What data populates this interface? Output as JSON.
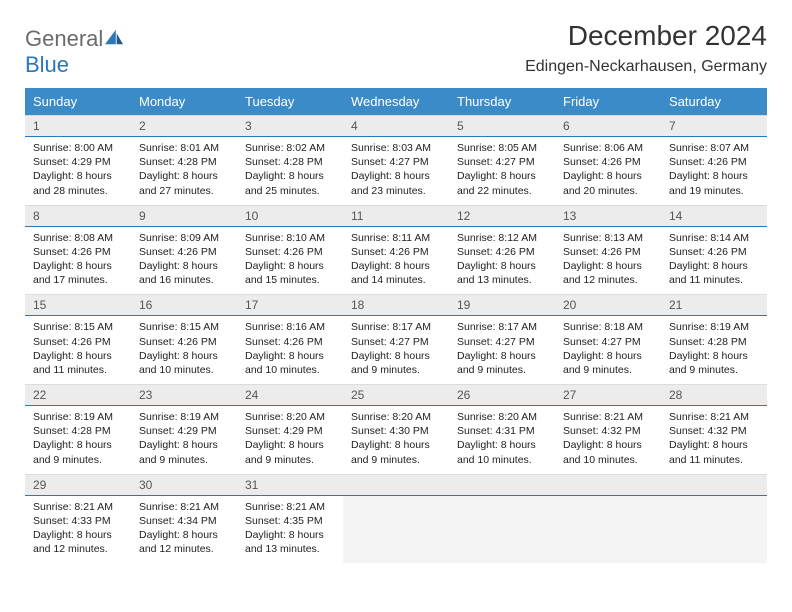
{
  "logo": {
    "part1": "General",
    "part2": "Blue"
  },
  "title": "December 2024",
  "location": "Edingen-Neckarhausen, Germany",
  "colors": {
    "header_bg": "#3b8bc8",
    "header_text": "#ffffff",
    "numrow_bg": "#ececec",
    "accent_border": "#2a77bb",
    "logo_gray": "#6b6b6b",
    "logo_blue": "#2a77bb",
    "body_text": "#222222"
  },
  "day_headers": [
    "Sunday",
    "Monday",
    "Tuesday",
    "Wednesday",
    "Thursday",
    "Friday",
    "Saturday"
  ],
  "weeks": [
    {
      "nums": [
        "1",
        "2",
        "3",
        "4",
        "5",
        "6",
        "7"
      ],
      "cells": [
        {
          "sunrise": "8:00 AM",
          "sunset": "4:29 PM",
          "dlh": "8",
          "dlm": "28"
        },
        {
          "sunrise": "8:01 AM",
          "sunset": "4:28 PM",
          "dlh": "8",
          "dlm": "27"
        },
        {
          "sunrise": "8:02 AM",
          "sunset": "4:28 PM",
          "dlh": "8",
          "dlm": "25"
        },
        {
          "sunrise": "8:03 AM",
          "sunset": "4:27 PM",
          "dlh": "8",
          "dlm": "23"
        },
        {
          "sunrise": "8:05 AM",
          "sunset": "4:27 PM",
          "dlh": "8",
          "dlm": "22"
        },
        {
          "sunrise": "8:06 AM",
          "sunset": "4:26 PM",
          "dlh": "8",
          "dlm": "20"
        },
        {
          "sunrise": "8:07 AM",
          "sunset": "4:26 PM",
          "dlh": "8",
          "dlm": "19"
        }
      ]
    },
    {
      "nums": [
        "8",
        "9",
        "10",
        "11",
        "12",
        "13",
        "14"
      ],
      "cells": [
        {
          "sunrise": "8:08 AM",
          "sunset": "4:26 PM",
          "dlh": "8",
          "dlm": "17"
        },
        {
          "sunrise": "8:09 AM",
          "sunset": "4:26 PM",
          "dlh": "8",
          "dlm": "16"
        },
        {
          "sunrise": "8:10 AM",
          "sunset": "4:26 PM",
          "dlh": "8",
          "dlm": "15"
        },
        {
          "sunrise": "8:11 AM",
          "sunset": "4:26 PM",
          "dlh": "8",
          "dlm": "14"
        },
        {
          "sunrise": "8:12 AM",
          "sunset": "4:26 PM",
          "dlh": "8",
          "dlm": "13"
        },
        {
          "sunrise": "8:13 AM",
          "sunset": "4:26 PM",
          "dlh": "8",
          "dlm": "12"
        },
        {
          "sunrise": "8:14 AM",
          "sunset": "4:26 PM",
          "dlh": "8",
          "dlm": "11"
        }
      ]
    },
    {
      "nums": [
        "15",
        "16",
        "17",
        "18",
        "19",
        "20",
        "21"
      ],
      "cells": [
        {
          "sunrise": "8:15 AM",
          "sunset": "4:26 PM",
          "dlh": "8",
          "dlm": "11"
        },
        {
          "sunrise": "8:15 AM",
          "sunset": "4:26 PM",
          "dlh": "8",
          "dlm": "10"
        },
        {
          "sunrise": "8:16 AM",
          "sunset": "4:26 PM",
          "dlh": "8",
          "dlm": "10"
        },
        {
          "sunrise": "8:17 AM",
          "sunset": "4:27 PM",
          "dlh": "8",
          "dlm": "9"
        },
        {
          "sunrise": "8:17 AM",
          "sunset": "4:27 PM",
          "dlh": "8",
          "dlm": "9"
        },
        {
          "sunrise": "8:18 AM",
          "sunset": "4:27 PM",
          "dlh": "8",
          "dlm": "9"
        },
        {
          "sunrise": "8:19 AM",
          "sunset": "4:28 PM",
          "dlh": "8",
          "dlm": "9"
        }
      ]
    },
    {
      "nums": [
        "22",
        "23",
        "24",
        "25",
        "26",
        "27",
        "28"
      ],
      "cells": [
        {
          "sunrise": "8:19 AM",
          "sunset": "4:28 PM",
          "dlh": "8",
          "dlm": "9"
        },
        {
          "sunrise": "8:19 AM",
          "sunset": "4:29 PM",
          "dlh": "8",
          "dlm": "9"
        },
        {
          "sunrise": "8:20 AM",
          "sunset": "4:29 PM",
          "dlh": "8",
          "dlm": "9"
        },
        {
          "sunrise": "8:20 AM",
          "sunset": "4:30 PM",
          "dlh": "8",
          "dlm": "9"
        },
        {
          "sunrise": "8:20 AM",
          "sunset": "4:31 PM",
          "dlh": "8",
          "dlm": "10"
        },
        {
          "sunrise": "8:21 AM",
          "sunset": "4:32 PM",
          "dlh": "8",
          "dlm": "10"
        },
        {
          "sunrise": "8:21 AM",
          "sunset": "4:32 PM",
          "dlh": "8",
          "dlm": "11"
        }
      ]
    },
    {
      "nums": [
        "29",
        "30",
        "31",
        "",
        "",
        "",
        ""
      ],
      "cells": [
        {
          "sunrise": "8:21 AM",
          "sunset": "4:33 PM",
          "dlh": "8",
          "dlm": "12"
        },
        {
          "sunrise": "8:21 AM",
          "sunset": "4:34 PM",
          "dlh": "8",
          "dlm": "12"
        },
        {
          "sunrise": "8:21 AM",
          "sunset": "4:35 PM",
          "dlh": "8",
          "dlm": "13"
        },
        null,
        null,
        null,
        null
      ]
    }
  ]
}
